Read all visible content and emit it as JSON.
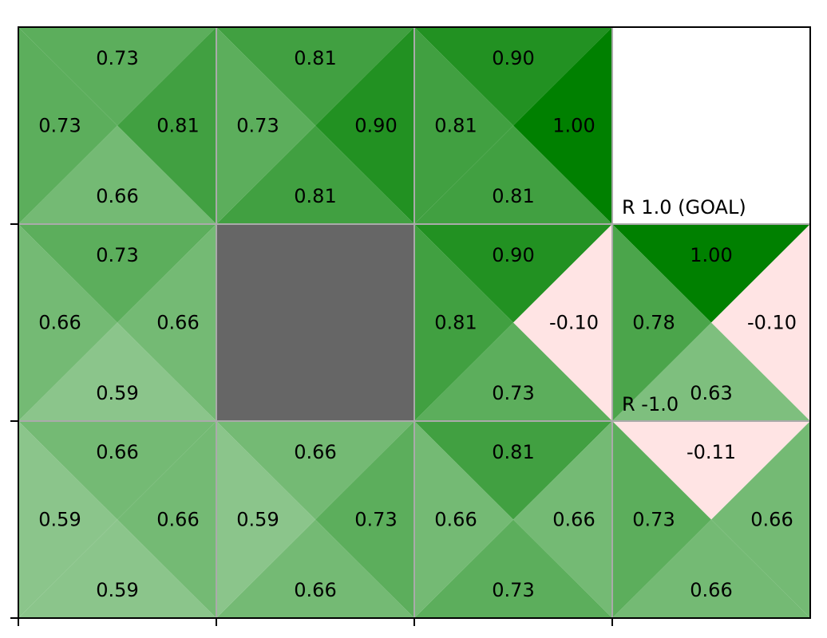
{
  "chart_data": {
    "type": "heatmap",
    "subtype": "gridworld-q-values",
    "rows": 3,
    "cols": 4,
    "action_order": [
      "up",
      "right",
      "down",
      "left"
    ],
    "colors": {
      "positive": "#008000",
      "negative": "#ffe4e4",
      "wall": "#666666",
      "empty": "#ffffff",
      "grid": "#aaaaaa",
      "frame": "#000000"
    },
    "cells": [
      {
        "row": 0,
        "col": 0,
        "q": {
          "up": "0.73",
          "right": "0.81",
          "down": "0.66",
          "left": "0.73"
        }
      },
      {
        "row": 0,
        "col": 1,
        "q": {
          "up": "0.81",
          "right": "0.90",
          "down": "0.81",
          "left": "0.73"
        }
      },
      {
        "row": 0,
        "col": 2,
        "q": {
          "up": "0.90",
          "right": "1.00",
          "down": "0.81",
          "left": "0.81"
        }
      },
      {
        "row": 0,
        "col": 3,
        "terminal": true,
        "label": "R 1.0 (GOAL)"
      },
      {
        "row": 1,
        "col": 0,
        "q": {
          "up": "0.73",
          "right": "0.66",
          "down": "0.59",
          "left": "0.66"
        }
      },
      {
        "row": 1,
        "col": 1,
        "wall": true
      },
      {
        "row": 1,
        "col": 2,
        "q": {
          "up": "0.90",
          "right": "-0.10",
          "down": "0.73",
          "left": "0.81"
        }
      },
      {
        "row": 1,
        "col": 3,
        "q": {
          "up": "1.00",
          "right": "-0.10",
          "down": "0.63",
          "left": "0.78"
        },
        "label": "R -1.0"
      },
      {
        "row": 2,
        "col": 0,
        "q": {
          "up": "0.66",
          "right": "0.66",
          "down": "0.59",
          "left": "0.59"
        }
      },
      {
        "row": 2,
        "col": 1,
        "q": {
          "up": "0.66",
          "right": "0.73",
          "down": "0.66",
          "left": "0.59"
        }
      },
      {
        "row": 2,
        "col": 2,
        "q": {
          "up": "0.81",
          "right": "0.66",
          "down": "0.73",
          "left": "0.66"
        }
      },
      {
        "row": 2,
        "col": 3,
        "q": {
          "up": "-0.11",
          "right": "0.66",
          "down": "0.66",
          "left": "0.73"
        }
      }
    ]
  }
}
